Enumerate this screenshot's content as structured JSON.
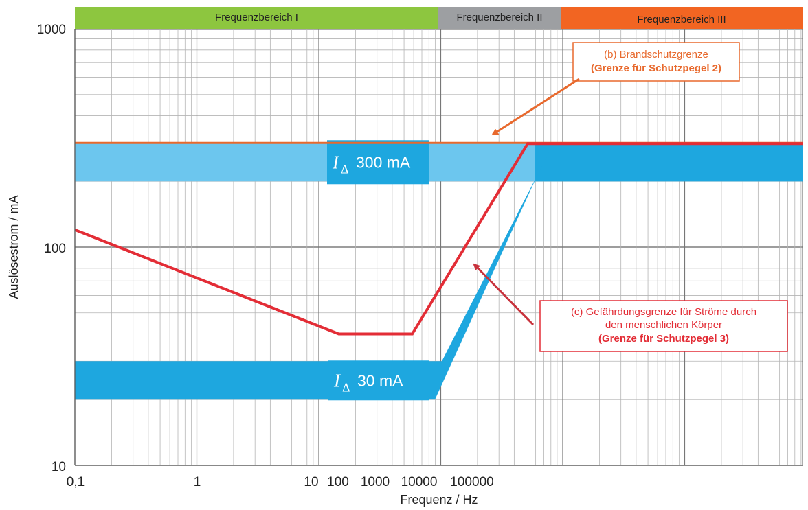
{
  "chart_data": {
    "type": "line",
    "title": "",
    "xlabel": "Frequenz / Hz",
    "ylabel": "Auslösestrom / mA",
    "yscale": "log",
    "ylim": [
      10,
      1000
    ],
    "yticks": [
      "10",
      "100",
      "1000"
    ],
    "xticks": [
      "0,1",
      "1",
      "10",
      "100",
      "1000",
      "10000",
      "100000"
    ],
    "grid": true,
    "frequency_ranges": [
      {
        "label": "Frequenzbereich I",
        "color": "#8dc63f"
      },
      {
        "label": "Frequenzbereich II",
        "color": "#9d9fa2"
      },
      {
        "label": "Frequenzbereich III",
        "color": "#f26522"
      }
    ],
    "series": [
      {
        "name": "(b) Brandschutzgrenze",
        "color": "#e8692d",
        "points": [
          {
            "x": "0,1",
            "y": 300
          },
          {
            "x": "> 100000",
            "y": 300
          }
        ]
      },
      {
        "name": "(c) Gefährdungsgrenze für Ströme durch den menschlichen Körper",
        "color": "#e32d36",
        "points": [
          {
            "x": "0,1",
            "y": 120
          },
          {
            "x": "100",
            "y": 40
          },
          {
            "x": "~5000",
            "y": 40
          },
          {
            "x": "~500000",
            "y": 300
          },
          {
            "x": "> 1000000",
            "y": 300
          }
        ]
      }
    ],
    "bands": [
      {
        "label": "30 mA",
        "symbol": "I",
        "subscript": "Δ",
        "y_range": [
          20,
          30
        ],
        "color": "#1ea7df"
      },
      {
        "label": "300 mA",
        "symbol": "I",
        "subscript": "Δ",
        "y_range": [
          200,
          300
        ],
        "color": "#1ea7df"
      }
    ],
    "annotations": [
      {
        "lines": [
          "(b) Brandschutzgrenze",
          "(Grenze für Schutzpegel 2)"
        ],
        "color": "#e8692d"
      },
      {
        "lines": [
          "(c) Gefährdungsgrenze für Ströme durch",
          "den menschlichen Körper",
          "(Grenze für Schutzpegel 3)"
        ],
        "color": "#e32d36"
      }
    ]
  }
}
